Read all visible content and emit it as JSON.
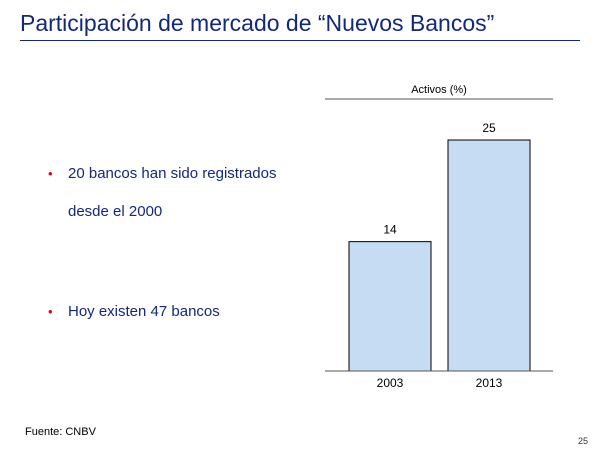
{
  "slide": {
    "title": "Participación de mercado de “Nuevos Bancos”",
    "source": "Fuente: CNBV",
    "page_number": "25"
  },
  "bullets": [
    {
      "lines": [
        "20 bancos han sido registrados",
        "desde el 2000"
      ]
    },
    {
      "lines": [
        "Hoy existen 47 bancos"
      ]
    }
  ],
  "colors": {
    "title": "#14287a",
    "bullet_marker": "#e2001a",
    "bar_fill": "#c6dcf2",
    "bar_stroke": "#000000"
  },
  "chart_data": {
    "type": "bar",
    "title": "Activos (%)",
    "categories": [
      "2003",
      "2013"
    ],
    "values": [
      14,
      25
    ],
    "data_labels": [
      "14",
      "25"
    ],
    "ylim": [
      0,
      30
    ],
    "grid": false,
    "legend": "none"
  }
}
